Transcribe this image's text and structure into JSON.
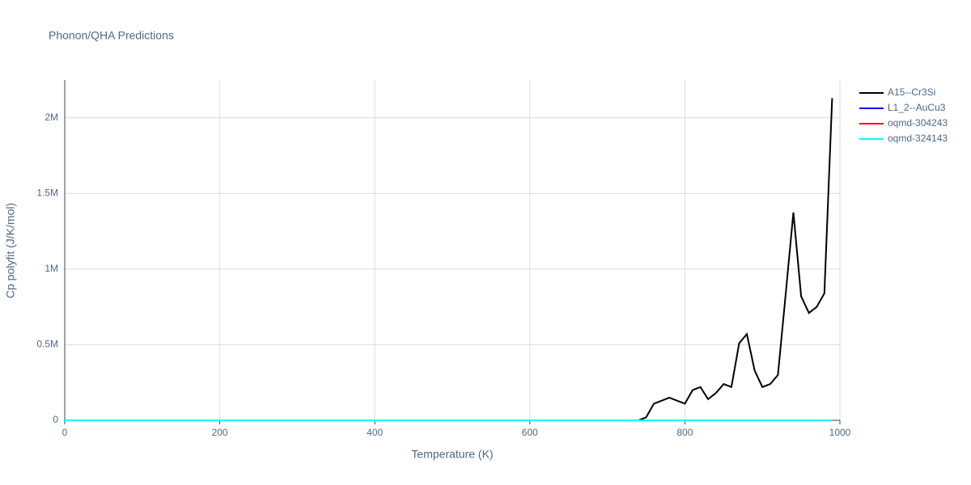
{
  "chart_data": {
    "type": "line",
    "title": "Phonon/QHA Predictions",
    "x_label": "Temperature (K)",
    "y_label": "Cp polyfit (J/K/mol)",
    "x": [
      0,
      100,
      200,
      300,
      400,
      500,
      600,
      700,
      740,
      750,
      760,
      770,
      780,
      790,
      800,
      810,
      820,
      830,
      840,
      850,
      860,
      870,
      880,
      890,
      900,
      910,
      920,
      930,
      940,
      950,
      960,
      970,
      980,
      990
    ],
    "series": [
      {
        "name": "A15--Cr3Si",
        "color": "#000000",
        "values": [
          0,
          0,
          0,
          0,
          0,
          0,
          0,
          0,
          0,
          20000,
          110000,
          130000,
          150000,
          130000,
          110000,
          200000,
          220000,
          140000,
          180000,
          240000,
          220000,
          510000,
          570000,
          330000,
          220000,
          240000,
          300000,
          830000,
          1374000,
          820000,
          710000,
          750000,
          840000,
          2130000
        ]
      },
      {
        "name": "L1_2--AuCu3",
        "color": "#0000ff",
        "values": [
          0,
          0,
          0,
          0,
          0,
          0,
          0,
          0,
          0,
          0,
          0,
          0,
          0,
          0,
          0,
          0,
          0,
          0,
          0,
          0,
          0,
          0,
          0,
          0,
          0,
          0,
          0,
          0,
          0,
          0,
          0,
          0,
          0,
          0
        ]
      },
      {
        "name": "oqmd-304243",
        "color": "#ff0000",
        "values": [
          0,
          0,
          0,
          0,
          0,
          0,
          0,
          0,
          0,
          0,
          0,
          0,
          0,
          0,
          0,
          0,
          0,
          0,
          0,
          0,
          0,
          0,
          0,
          0,
          0,
          0,
          0,
          0,
          0,
          0,
          0,
          0,
          0,
          0
        ]
      },
      {
        "name": "oqmd-324143",
        "color": "#00ffff",
        "values": [
          0,
          0,
          0,
          0,
          0,
          0,
          0,
          0,
          0,
          0,
          0,
          0,
          0,
          0,
          0,
          0,
          0,
          0,
          0,
          0,
          0,
          0,
          0,
          0,
          0,
          0,
          0,
          0,
          0,
          0,
          0,
          0,
          0,
          0
        ]
      }
    ],
    "xlim": [
      0,
      1000
    ],
    "xticks": [
      0,
      200,
      400,
      600,
      800,
      1000
    ],
    "ylim": [
      0,
      2250000
    ],
    "yticks": [
      0,
      {
        "value": 500000,
        "label": "0.5M"
      },
      {
        "value": 1000000,
        "label": "1M"
      },
      {
        "value": 1500000,
        "label": "1.5M"
      },
      {
        "value": 2000000,
        "label": "2M"
      }
    ],
    "grid": true,
    "legend": "right"
  }
}
